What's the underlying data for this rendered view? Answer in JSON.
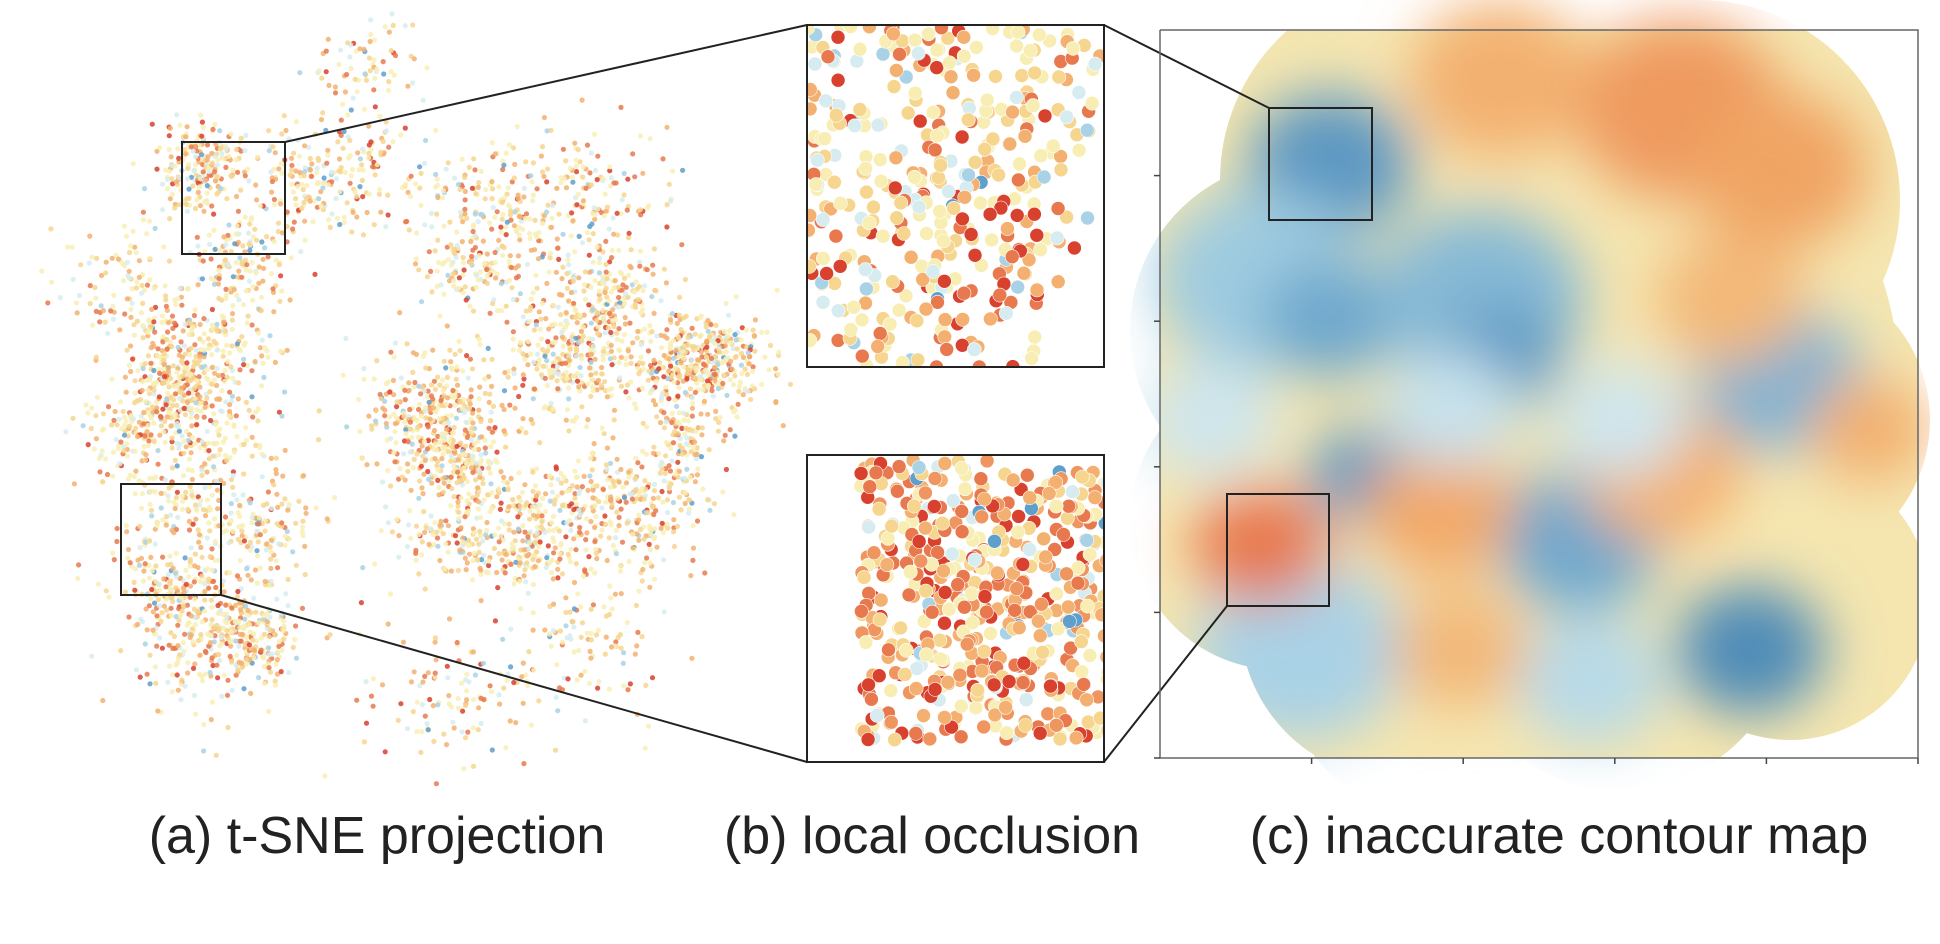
{
  "captions": [
    "(a) t-SNE projection",
    "(b) local occlusion",
    "(c) inaccurate contour map"
  ]
}
